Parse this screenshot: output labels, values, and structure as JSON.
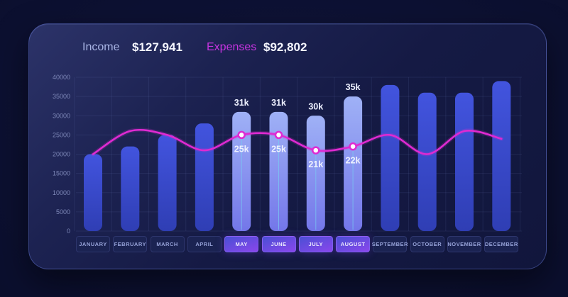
{
  "header": {
    "income_label": "Income",
    "income_value": "$127,941",
    "expenses_label": "Expenses",
    "expenses_value": "$92,802"
  },
  "colors": {
    "accent_magenta": "#df2ad2",
    "accent_text": "#c634e0",
    "income_label_text": "#a9b5e5",
    "value_text": "#f5f6ff",
    "axis_text": "#7e88b8",
    "grid_line": "rgba(148,163,233,0.10)",
    "bar_top": "#4254de",
    "bar_bottom": "#2f3eb4",
    "bar_highlight_top": "#9fb1f6",
    "bar_highlight_bottom": "#7477e9",
    "point_fill": "#ffffff",
    "point_guide": "#79c9f2",
    "button_bg": "#1b2352",
    "button_text": "#96a2d8",
    "button_active_from": "#4a4fd4",
    "button_active_to": "#8a47ec",
    "button_active_text": "#eceafd"
  },
  "chart_data": {
    "type": "bar",
    "subtype": "bar-with-line-overlay",
    "categories": [
      "JANUARY",
      "FEBRUARY",
      "MARCH",
      "APRIL",
      "MAY",
      "JUNE",
      "JULY",
      "AUGUST",
      "SEPTEMBER",
      "OCTOBER",
      "NOVEMBER",
      "DECEMBER"
    ],
    "series": [
      {
        "name": "Income",
        "type": "bar",
        "values": [
          20000,
          22000,
          25000,
          28000,
          31000,
          31000,
          30000,
          35000,
          38000,
          36000,
          36000,
          39000
        ]
      },
      {
        "name": "Expenses",
        "type": "line",
        "values": [
          20000,
          26000,
          25000,
          21000,
          25000,
          25000,
          21000,
          22000,
          25000,
          20000,
          26000,
          24000
        ]
      }
    ],
    "highlighted_month_indices": [
      4,
      5,
      6,
      7
    ],
    "highlighted_months": [
      "MAY",
      "JUNE",
      "JULY",
      "AUGUST"
    ],
    "bar_value_labels": [
      null,
      null,
      null,
      null,
      "31k",
      "31k",
      "30k",
      "35k",
      null,
      null,
      null,
      null
    ],
    "line_point_labels": [
      null,
      null,
      null,
      null,
      "25k",
      "25k",
      "21k",
      "22k",
      null,
      null,
      null,
      null
    ],
    "y_axis": {
      "min": 0,
      "max": 40000,
      "step": 5000,
      "ticks": [
        "40000",
        "35000",
        "30000",
        "25000",
        "20000",
        "15000",
        "10000",
        "5000",
        "0"
      ]
    },
    "grid": true,
    "legend_position": "top"
  }
}
